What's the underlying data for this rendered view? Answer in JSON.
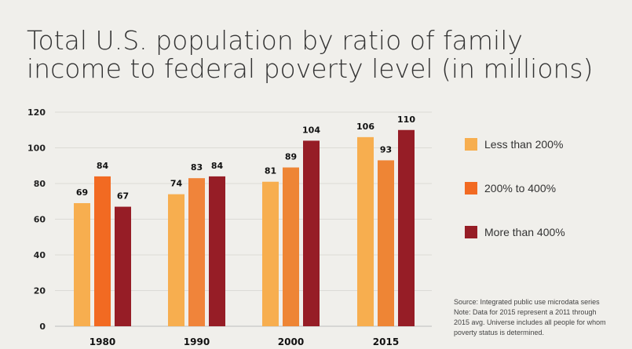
{
  "title_lines": [
    "Total U.S. population by ratio of family",
    "income to federal poverty level (in millions)"
  ],
  "chart_data": {
    "type": "bar",
    "title": "Total U.S. population by ratio of family income to federal poverty level (in millions)",
    "categories": [
      "1980",
      "1990",
      "2000",
      "2015"
    ],
    "series": [
      {
        "name": "Less than 200%",
        "values": [
          69,
          74,
          81,
          106
        ],
        "color": "#f7ae4f"
      },
      {
        "name": "200% to 400%",
        "values": [
          84,
          83,
          89,
          93
        ],
        "color": "#f26a22"
      },
      {
        "name": "More than 400%",
        "values": [
          67,
          84,
          104,
          110
        ],
        "color": "#961d26"
      }
    ],
    "series_colors_by_category": [
      [
        "#f7ae4f",
        "#f26a22",
        "#961d26"
      ],
      [
        "#f7ae4f",
        "#f0843a",
        "#961d26"
      ],
      [
        "#f7ae4f",
        "#ee8535",
        "#961d26"
      ],
      [
        "#f7ae4f",
        "#ee8535",
        "#961d26"
      ]
    ],
    "ylim": [
      0,
      120
    ],
    "yticks": [
      0,
      20,
      40,
      60,
      80,
      100,
      120
    ],
    "grid": true,
    "legend_position": "right"
  },
  "source_lines": [
    "Source: Integrated public use microdata series",
    "Note: Data for 2015 represent a 2011 through",
    "2015 avg. Universe includes all people for whom",
    "poverty status is determined."
  ]
}
